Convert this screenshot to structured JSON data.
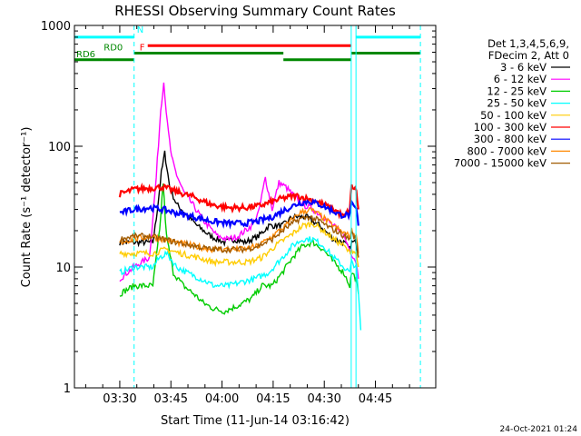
{
  "chart_data": {
    "type": "line",
    "title": "RHESSI Observing Summary Count Rates",
    "xlabel": "Start Time (11-Jun-14 03:16:42)",
    "ylabel": "Count Rate (s⁻¹ detector⁻¹)",
    "yscale": "log",
    "ylim": [
      1,
      1000
    ],
    "xlim_minutes_after_start": [
      0,
      106
    ],
    "x_ticks": [
      {
        "label": "03:30",
        "t": 13.3
      },
      {
        "label": "03:45",
        "t": 28.3
      },
      {
        "label": "04:00",
        "t": 43.3
      },
      {
        "label": "04:15",
        "t": 58.3
      },
      {
        "label": "04:30",
        "t": 73.3
      },
      {
        "label": "04:45",
        "t": 88.3
      }
    ],
    "y_ticks": [
      "1",
      "10",
      "100",
      "1000"
    ],
    "legend_header": [
      "Det 1,3,4,5,6,9,",
      "FDecim 2, Att 0"
    ],
    "series": [
      {
        "name": "3 - 6 keV",
        "color": "#000000",
        "points": [
          [
            13.3,
            16
          ],
          [
            17.5,
            16
          ],
          [
            23,
            16
          ],
          [
            24,
            25
          ],
          [
            25.5,
            60
          ],
          [
            26.5,
            88
          ],
          [
            28,
            45
          ],
          [
            30,
            33
          ],
          [
            33,
            27
          ],
          [
            36,
            22
          ],
          [
            40,
            18
          ],
          [
            44,
            16
          ],
          [
            47,
            17
          ],
          [
            50,
            16
          ],
          [
            54,
            18
          ],
          [
            57,
            22
          ],
          [
            61,
            22
          ],
          [
            64,
            26
          ],
          [
            68,
            26
          ],
          [
            72,
            22
          ],
          [
            76,
            17
          ],
          [
            79,
            16
          ],
          [
            80.8,
            14
          ],
          [
            81.3,
            16
          ],
          [
            82.7,
            16
          ],
          [
            83.3,
            12
          ]
        ]
      },
      {
        "name": "6 - 12 keV",
        "color": "#ff00ff",
        "points": [
          [
            13.3,
            8
          ],
          [
            17.5,
            10
          ],
          [
            22,
            12
          ],
          [
            24,
            55
          ],
          [
            25.3,
            200
          ],
          [
            26.2,
            340
          ],
          [
            27.3,
            150
          ],
          [
            28.5,
            80
          ],
          [
            30,
            58
          ],
          [
            32,
            42
          ],
          [
            35,
            32
          ],
          [
            38,
            24
          ],
          [
            42,
            18
          ],
          [
            45,
            17
          ],
          [
            48,
            18
          ],
          [
            52,
            22
          ],
          [
            54,
            28
          ],
          [
            56,
            55
          ],
          [
            58,
            30
          ],
          [
            60,
            50
          ],
          [
            62,
            46
          ],
          [
            64,
            40
          ],
          [
            67,
            33
          ],
          [
            70,
            30
          ],
          [
            73,
            26
          ],
          [
            76,
            22
          ],
          [
            79,
            18
          ],
          [
            80.8,
            14
          ],
          [
            81.3,
            13
          ],
          [
            82.7,
            11
          ],
          [
            83.3,
            8
          ]
        ]
      },
      {
        "name": "12 - 25 keV",
        "color": "#00cc00",
        "points": [
          [
            13.3,
            6
          ],
          [
            17.5,
            7
          ],
          [
            23,
            7
          ],
          [
            25,
            20
          ],
          [
            26,
            50
          ],
          [
            27,
            18
          ],
          [
            29,
            9
          ],
          [
            32,
            7
          ],
          [
            35,
            6
          ],
          [
            38,
            5
          ],
          [
            41,
            4.5
          ],
          [
            44,
            4.3
          ],
          [
            48,
            4.8
          ],
          [
            52,
            5.5
          ],
          [
            55,
            7
          ],
          [
            58,
            7
          ],
          [
            61,
            9
          ],
          [
            64,
            12
          ],
          [
            67,
            15
          ],
          [
            70,
            16
          ],
          [
            73,
            14
          ],
          [
            76,
            11
          ],
          [
            79,
            9
          ],
          [
            80.8,
            7
          ],
          [
            81.3,
            9
          ],
          [
            82.7,
            8
          ],
          [
            83.3,
            6
          ]
        ]
      },
      {
        "name": "25 - 50 keV",
        "color": "#00ffff",
        "points": [
          [
            13.3,
            9
          ],
          [
            17.5,
            10
          ],
          [
            23,
            10
          ],
          [
            25,
            12
          ],
          [
            27,
            13
          ],
          [
            30,
            10
          ],
          [
            33,
            9
          ],
          [
            37,
            8
          ],
          [
            41,
            7
          ],
          [
            45,
            7
          ],
          [
            49,
            7.5
          ],
          [
            53,
            8
          ],
          [
            57,
            9
          ],
          [
            61,
            12
          ],
          [
            64,
            15
          ],
          [
            67,
            17
          ],
          [
            70,
            17
          ],
          [
            73,
            15
          ],
          [
            76,
            12
          ],
          [
            79,
            10
          ],
          [
            80.8,
            9
          ],
          [
            81.3,
            11
          ],
          [
            82.7,
            10
          ],
          [
            83.3,
            6
          ],
          [
            84,
            3
          ]
        ]
      },
      {
        "name": "50 - 100 keV",
        "color": "#ffcc00",
        "points": [
          [
            13.3,
            13
          ],
          [
            17.5,
            13
          ],
          [
            23,
            13
          ],
          [
            27,
            14
          ],
          [
            31,
            13
          ],
          [
            36,
            12
          ],
          [
            41,
            11
          ],
          [
            46,
            11
          ],
          [
            51,
            11
          ],
          [
            55,
            12
          ],
          [
            59,
            15
          ],
          [
            63,
            18
          ],
          [
            67,
            22
          ],
          [
            70,
            23
          ],
          [
            73,
            20
          ],
          [
            76,
            17
          ],
          [
            79,
            15
          ],
          [
            80.8,
            13
          ],
          [
            81.3,
            14
          ],
          [
            82.7,
            13
          ],
          [
            83.3,
            10
          ]
        ]
      },
      {
        "name": "100 - 300 keV",
        "color": "#ff0000",
        "points": [
          [
            13.3,
            40
          ],
          [
            17.5,
            44
          ],
          [
            22,
            45
          ],
          [
            26,
            46
          ],
          [
            30,
            42
          ],
          [
            35,
            38
          ],
          [
            40,
            33
          ],
          [
            45,
            31
          ],
          [
            50,
            31
          ],
          [
            54,
            32
          ],
          [
            57,
            34
          ],
          [
            61,
            37
          ],
          [
            65,
            39
          ],
          [
            68,
            37
          ],
          [
            71,
            35
          ],
          [
            74,
            32
          ],
          [
            77,
            29
          ],
          [
            79,
            26
          ],
          [
            80.8,
            30
          ],
          [
            81.3,
            47
          ],
          [
            82.7,
            43
          ],
          [
            83.3,
            30
          ]
        ]
      },
      {
        "name": "300 - 800 keV",
        "color": "#0000ff",
        "points": [
          [
            13.3,
            28
          ],
          [
            17.5,
            30
          ],
          [
            22,
            31
          ],
          [
            26,
            30
          ],
          [
            30,
            28
          ],
          [
            35,
            26
          ],
          [
            40,
            24
          ],
          [
            45,
            23
          ],
          [
            50,
            23
          ],
          [
            54,
            24
          ],
          [
            58,
            26
          ],
          [
            62,
            30
          ],
          [
            66,
            34
          ],
          [
            69,
            35
          ],
          [
            72,
            33
          ],
          [
            75,
            30
          ],
          [
            78,
            27
          ],
          [
            80.8,
            27
          ],
          [
            81.3,
            33
          ],
          [
            82.7,
            30
          ],
          [
            83.3,
            22
          ]
        ]
      },
      {
        "name": "800 - 7000 keV",
        "color": "#ff8800",
        "points": [
          [
            13.3,
            16
          ],
          [
            17.5,
            17
          ],
          [
            22,
            18
          ],
          [
            26,
            17
          ],
          [
            30,
            16
          ],
          [
            35,
            15
          ],
          [
            40,
            14
          ],
          [
            45,
            14
          ],
          [
            50,
            14
          ],
          [
            54,
            15
          ],
          [
            58,
            18
          ],
          [
            62,
            22
          ],
          [
            66,
            28
          ],
          [
            69,
            30
          ],
          [
            72,
            27
          ],
          [
            75,
            23
          ],
          [
            78,
            20
          ],
          [
            80.8,
            18
          ],
          [
            81.3,
            20
          ],
          [
            82.7,
            18
          ],
          [
            83.3,
            13
          ]
        ]
      },
      {
        "name": "7000 - 15000 keV",
        "color": "#a05a00",
        "points": [
          [
            13.3,
            17
          ],
          [
            17.5,
            18
          ],
          [
            22,
            18
          ],
          [
            26,
            17
          ],
          [
            30,
            16
          ],
          [
            35,
            15
          ],
          [
            40,
            14
          ],
          [
            45,
            14
          ],
          [
            50,
            14
          ],
          [
            54,
            15
          ],
          [
            58,
            17
          ],
          [
            62,
            21
          ],
          [
            66,
            25
          ],
          [
            69,
            26
          ],
          [
            72,
            24
          ],
          [
            75,
            21
          ],
          [
            78,
            19
          ],
          [
            80.8,
            17
          ],
          [
            81.3,
            19
          ],
          [
            82.7,
            17
          ],
          [
            83.3,
            12
          ]
        ]
      }
    ],
    "vertical_markers": [
      {
        "t": 17.5,
        "color": "#00ffff",
        "style": "dashed"
      },
      {
        "t": 81.2,
        "color": "#00ffff",
        "style": "solid"
      },
      {
        "t": 82.6,
        "color": "#00ffff",
        "style": "solid"
      },
      {
        "t": 101.5,
        "color": "#00ffff",
        "style": "dashed"
      }
    ],
    "flag_bars": [
      {
        "label": "N",
        "color": "#00ffff",
        "level": 800,
        "spans": [
          [
            0,
            17.5
          ],
          [
            82.6,
            101.5
          ]
        ]
      },
      {
        "label": "F",
        "color": "#ff0000",
        "level": 680,
        "spans": [
          [
            21.5,
            81.2
          ]
        ]
      },
      {
        "label": "RD0",
        "color": "#008800",
        "level": 590,
        "spans": [
          [
            17.5,
            61.3
          ],
          [
            81.2,
            101.5
          ]
        ]
      },
      {
        "label": "RD6",
        "color": "#008800",
        "level": 520,
        "spans": [
          [
            0,
            8.0
          ],
          [
            8.0,
            17.5
          ],
          [
            61.3,
            81.2
          ]
        ]
      }
    ],
    "grid": false,
    "legend_position": "right"
  },
  "timestamp": "24-Oct-2021 01:24"
}
